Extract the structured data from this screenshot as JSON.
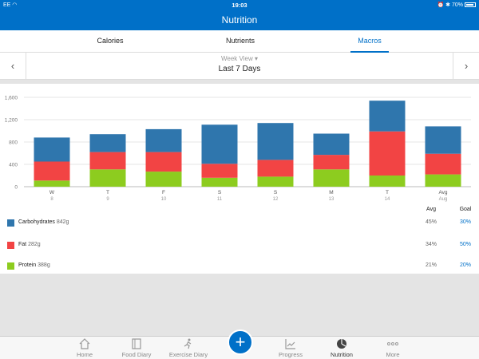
{
  "status": {
    "carrier": "EE",
    "time": "19:03",
    "battery": "70%"
  },
  "header": {
    "title": "Nutrition"
  },
  "tabs": [
    {
      "label": "Calories",
      "active": false
    },
    {
      "label": "Nutrients",
      "active": false
    },
    {
      "label": "Macros",
      "active": true
    }
  ],
  "period": {
    "view_label": "Week View",
    "range": "Last 7 Days"
  },
  "chart_data": {
    "type": "bar",
    "stacked": true,
    "categories": [
      "W",
      "T",
      "F",
      "S",
      "S",
      "M",
      "T",
      "Avg"
    ],
    "dates": [
      "8",
      "9",
      "10",
      "11",
      "12",
      "13",
      "14",
      "Aug"
    ],
    "yticks": [
      "0",
      "400",
      "800",
      "1,200",
      "1,600"
    ],
    "ylim": [
      0,
      1600
    ],
    "grid": true,
    "series": [
      {
        "name": "Protein",
        "color": "#8dcc1f",
        "values": [
          110,
          310,
          270,
          160,
          180,
          310,
          200,
          220
        ]
      },
      {
        "name": "Fat",
        "color": "#f24444",
        "values": [
          340,
          310,
          350,
          250,
          300,
          260,
          790,
          370
        ]
      },
      {
        "name": "Carbohydrates",
        "color": "#2f76ad",
        "values": [
          430,
          320,
          410,
          700,
          660,
          380,
          550,
          490
        ]
      }
    ]
  },
  "table": {
    "avg_header": "Avg",
    "goal_header": "Goal",
    "rows": [
      {
        "name": "Carbohydrates",
        "amount": "842g",
        "avg": "45%",
        "goal": "30%",
        "color": "#2f76ad"
      },
      {
        "name": "Fat",
        "amount": "282g",
        "avg": "34%",
        "goal": "50%",
        "color": "#f24444"
      },
      {
        "name": "Protein",
        "amount": "388g",
        "avg": "21%",
        "goal": "20%",
        "color": "#8dcc1f"
      }
    ]
  },
  "tabbar": [
    {
      "label": "Home",
      "icon": "home-icon"
    },
    {
      "label": "Food Diary",
      "icon": "book-icon"
    },
    {
      "label": "Exercise Diary",
      "icon": "runner-icon"
    },
    {
      "label": "Progress",
      "icon": "line-chart-icon"
    },
    {
      "label": "Nutrition",
      "icon": "pie-icon",
      "active": true
    },
    {
      "label": "More",
      "icon": "dots-icon"
    }
  ],
  "add_button": "+"
}
